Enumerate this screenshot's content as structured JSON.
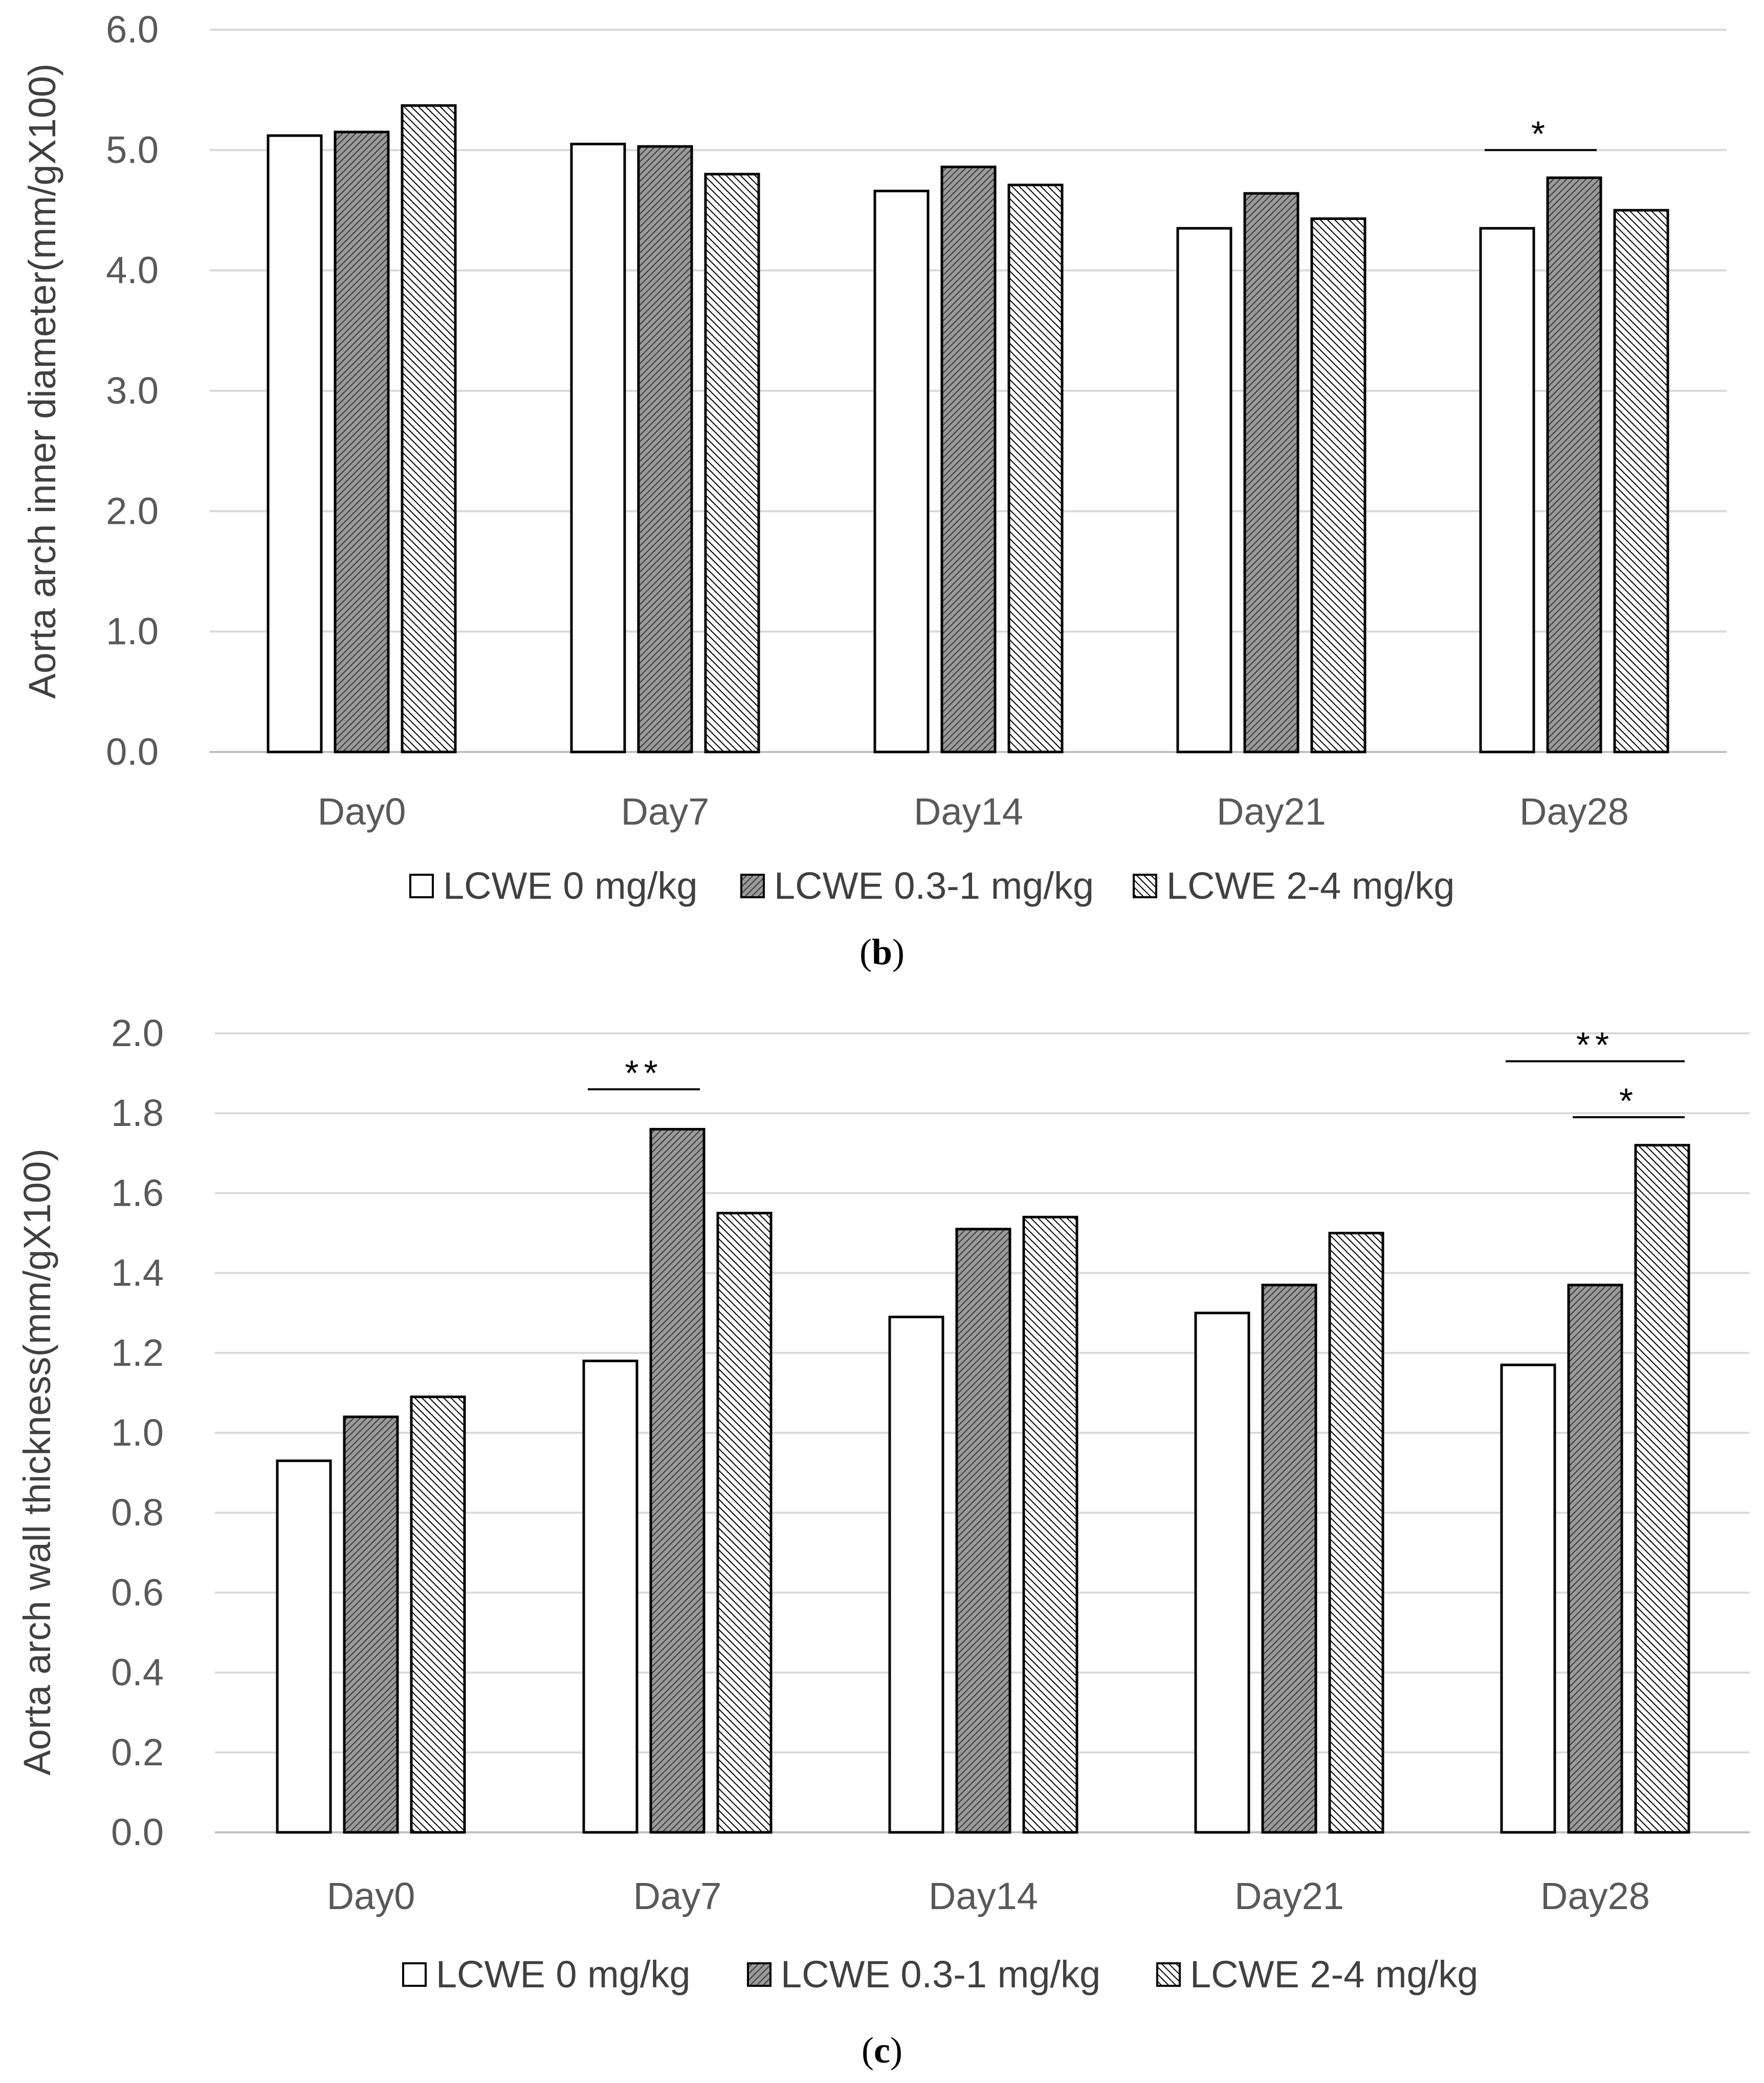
{
  "colors": {
    "bar_stroke": "#000000",
    "grid": "#d9d9d9",
    "group1_fill": "#ffffff",
    "group2_fill": "#7f7f7f",
    "group3_fill": "#ffffff",
    "hatch": "#000000"
  },
  "chart_data": [
    {
      "type": "bar",
      "panel_label": "b",
      "ylabel": "Aorta arch inner diameter(mm/gX100)",
      "xlabel": "",
      "ylim": [
        0,
        6.0
      ],
      "yticks": [
        "0.0",
        "1.0",
        "2.0",
        "3.0",
        "4.0",
        "5.0",
        "6.0"
      ],
      "categories": [
        "Day0",
        "Day7",
        "Day14",
        "Day21",
        "Day28"
      ],
      "grid": true,
      "legend_position": "bottom",
      "series": [
        {
          "name": "LCWE 0 mg/kg",
          "values": [
            5.12,
            5.05,
            4.66,
            4.35,
            4.35
          ]
        },
        {
          "name": "LCWE 0.3-1 mg/kg",
          "values": [
            5.15,
            5.03,
            4.86,
            4.64,
            4.77
          ]
        },
        {
          "name": "LCWE 2-4 mg/kg",
          "values": [
            5.37,
            4.8,
            4.71,
            4.43,
            4.5
          ]
        }
      ],
      "annotations": [
        {
          "text": "*",
          "category": "Day28",
          "from_series": 0,
          "to_series": 1,
          "level": 5.0
        }
      ]
    },
    {
      "type": "bar",
      "panel_label": "c",
      "ylabel": "Aorta arch wall thickness(mm/gX100)",
      "xlabel": "",
      "ylim": [
        0,
        2.0
      ],
      "yticks": [
        "0.0",
        "0.2",
        "0.4",
        "0.6",
        "0.8",
        "1.0",
        "1.2",
        "1.4",
        "1.6",
        "1.8",
        "2.0"
      ],
      "categories": [
        "Day0",
        "Day7",
        "Day14",
        "Day21",
        "Day28"
      ],
      "grid": true,
      "legend_position": "bottom",
      "series": [
        {
          "name": "LCWE 0 mg/kg",
          "values": [
            0.93,
            1.18,
            1.29,
            1.3,
            1.17
          ]
        },
        {
          "name": "LCWE 0.3-1 mg/kg",
          "values": [
            1.04,
            1.76,
            1.51,
            1.37,
            1.37
          ]
        },
        {
          "name": "LCWE 2-4 mg/kg",
          "values": [
            1.09,
            1.55,
            1.54,
            1.5,
            1.72
          ]
        }
      ],
      "annotations": [
        {
          "text": "**",
          "category": "Day7",
          "from_series": 0,
          "to_series": 1,
          "level": 1.86
        },
        {
          "text": "**",
          "category": "Day28",
          "from_series": 0,
          "to_series": 2,
          "level": 1.93
        },
        {
          "text": "*",
          "category": "Day28",
          "from_series": 1,
          "to_series": 2,
          "level": 1.79
        }
      ]
    }
  ]
}
